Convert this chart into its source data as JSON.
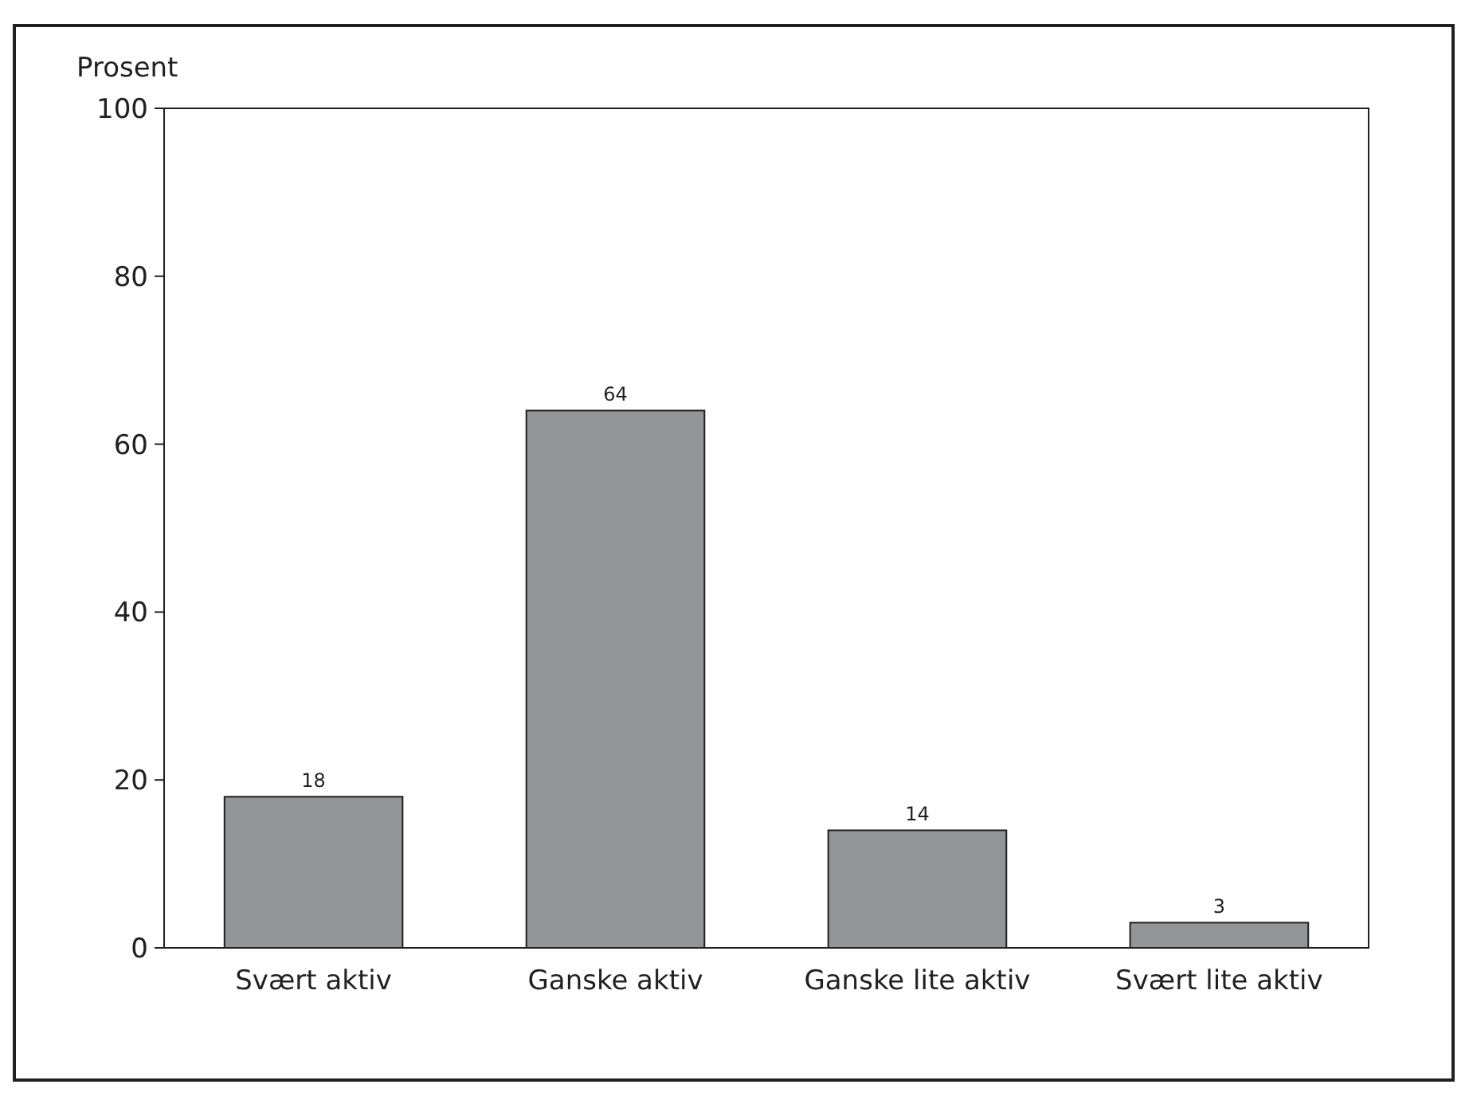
{
  "chart_data": {
    "type": "bar",
    "ylabel": "Prosent",
    "categories": [
      "Svært aktiv",
      "Ganske aktiv",
      "Ganske lite aktiv",
      "Svært lite aktiv"
    ],
    "values": [
      18,
      64,
      14,
      3
    ],
    "color": "#939598",
    "ylim": [
      0,
      100
    ],
    "yticks": [
      0,
      20,
      40,
      60,
      80,
      100
    ],
    "data_labels": true,
    "grid": false
  }
}
